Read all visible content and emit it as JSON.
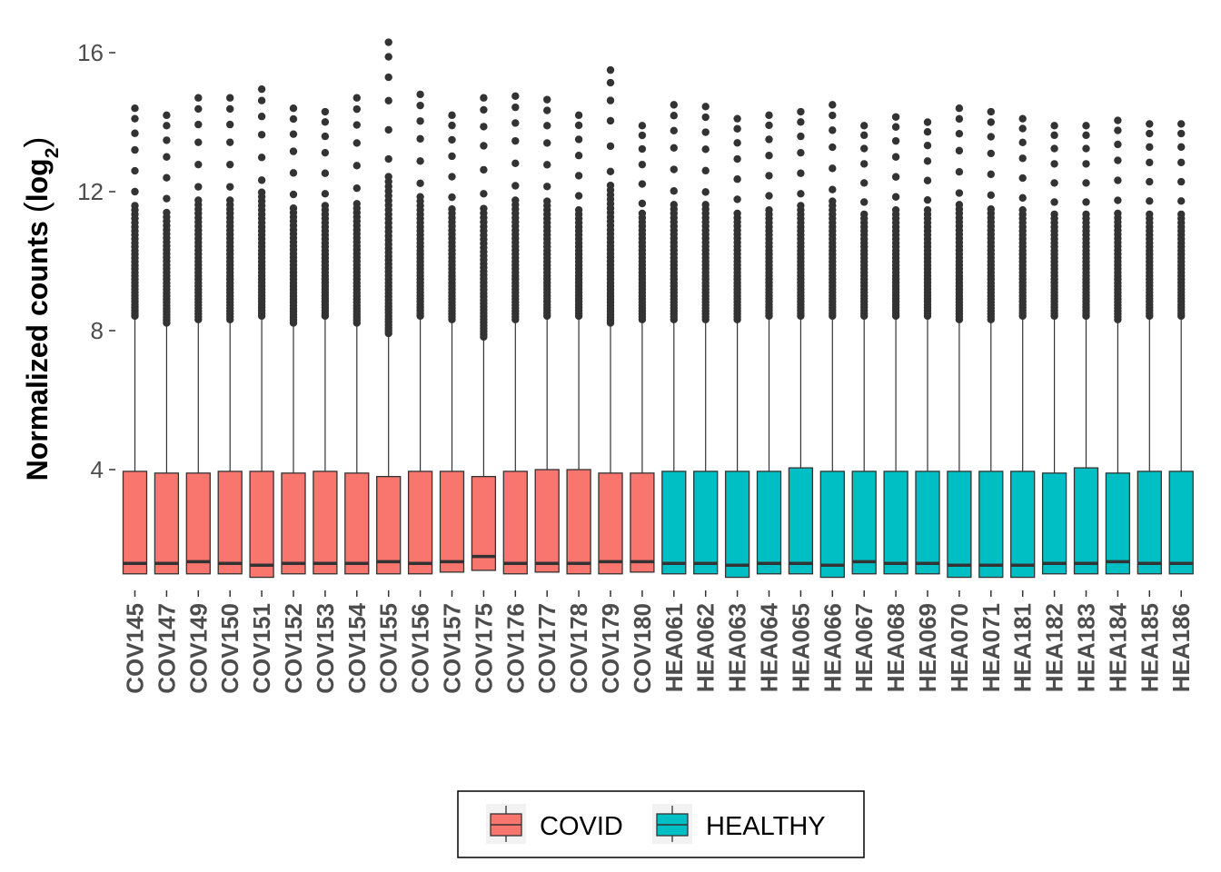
{
  "chart_data": {
    "type": "boxplot",
    "ylabel": "Normalized counts (log2)",
    "ylabel_parts": {
      "main": "Normalized counts ",
      "base": "log",
      "sub": "2"
    },
    "xlabel": "",
    "ylim": [
      0.3,
      16.5
    ],
    "yticks": [
      4,
      8,
      12,
      16
    ],
    "legend": {
      "placement": "bottom",
      "entries": [
        {
          "group": "COVID",
          "label": "COVID",
          "color": "#F8766D"
        },
        {
          "group": "HEALTHY",
          "label": "HEALTHY",
          "color": "#00BFC4"
        }
      ]
    },
    "outlier_color": "#333333",
    "box_stroke": "#333333",
    "samples": [
      {
        "name": "COV145",
        "group": "COVID",
        "q1": 1.0,
        "median": 1.3,
        "q3": 3.95,
        "whisker_low": 1.0,
        "whisker_high": 8.4,
        "outlier_max": 14.4
      },
      {
        "name": "COV147",
        "group": "COVID",
        "q1": 1.0,
        "median": 1.3,
        "q3": 3.9,
        "whisker_low": 1.0,
        "whisker_high": 8.2,
        "outlier_max": 14.2
      },
      {
        "name": "COV149",
        "group": "COVID",
        "q1": 1.0,
        "median": 1.35,
        "q3": 3.9,
        "whisker_low": 1.0,
        "whisker_high": 8.3,
        "outlier_max": 14.7
      },
      {
        "name": "COV150",
        "group": "COVID",
        "q1": 1.0,
        "median": 1.3,
        "q3": 3.95,
        "whisker_low": 1.0,
        "whisker_high": 8.3,
        "outlier_max": 14.7
      },
      {
        "name": "COV151",
        "group": "COVID",
        "q1": 0.9,
        "median": 1.25,
        "q3": 3.95,
        "whisker_low": 0.9,
        "whisker_high": 8.4,
        "outlier_max": 14.95
      },
      {
        "name": "COV152",
        "group": "COVID",
        "q1": 1.0,
        "median": 1.3,
        "q3": 3.9,
        "whisker_low": 1.0,
        "whisker_high": 8.2,
        "outlier_max": 14.4
      },
      {
        "name": "COV153",
        "group": "COVID",
        "q1": 1.0,
        "median": 1.3,
        "q3": 3.95,
        "whisker_low": 1.0,
        "whisker_high": 8.4,
        "outlier_max": 14.3
      },
      {
        "name": "COV154",
        "group": "COVID",
        "q1": 1.0,
        "median": 1.3,
        "q3": 3.9,
        "whisker_low": 1.0,
        "whisker_high": 8.2,
        "outlier_max": 14.7
      },
      {
        "name": "COV155",
        "group": "COVID",
        "q1": 1.0,
        "median": 1.35,
        "q3": 3.8,
        "whisker_low": 1.0,
        "whisker_high": 7.9,
        "outlier_max": 16.3
      },
      {
        "name": "COV156",
        "group": "COVID",
        "q1": 1.0,
        "median": 1.3,
        "q3": 3.95,
        "whisker_low": 1.0,
        "whisker_high": 8.4,
        "outlier_max": 14.8
      },
      {
        "name": "COV157",
        "group": "COVID",
        "q1": 1.05,
        "median": 1.35,
        "q3": 3.95,
        "whisker_low": 1.05,
        "whisker_high": 8.3,
        "outlier_max": 14.2
      },
      {
        "name": "COV175",
        "group": "COVID",
        "q1": 1.1,
        "median": 1.5,
        "q3": 3.8,
        "whisker_low": 1.1,
        "whisker_high": 7.8,
        "outlier_max": 14.7
      },
      {
        "name": "COV176",
        "group": "COVID",
        "q1": 1.0,
        "median": 1.3,
        "q3": 3.95,
        "whisker_low": 1.0,
        "whisker_high": 8.3,
        "outlier_max": 14.75
      },
      {
        "name": "COV177",
        "group": "COVID",
        "q1": 1.05,
        "median": 1.3,
        "q3": 4.0,
        "whisker_low": 1.05,
        "whisker_high": 8.4,
        "outlier_max": 14.65
      },
      {
        "name": "COV178",
        "group": "COVID",
        "q1": 1.0,
        "median": 1.3,
        "q3": 4.0,
        "whisker_low": 1.0,
        "whisker_high": 8.4,
        "outlier_max": 14.2
      },
      {
        "name": "COV179",
        "group": "COVID",
        "q1": 1.0,
        "median": 1.35,
        "q3": 3.9,
        "whisker_low": 1.0,
        "whisker_high": 8.2,
        "outlier_max": 15.5
      },
      {
        "name": "COV180",
        "group": "COVID",
        "q1": 1.05,
        "median": 1.35,
        "q3": 3.9,
        "whisker_low": 1.05,
        "whisker_high": 8.3,
        "outlier_max": 13.9
      },
      {
        "name": "HEA061",
        "group": "HEALTHY",
        "q1": 1.0,
        "median": 1.3,
        "q3": 3.95,
        "whisker_low": 1.0,
        "whisker_high": 8.3,
        "outlier_max": 14.5
      },
      {
        "name": "HEA062",
        "group": "HEALTHY",
        "q1": 1.0,
        "median": 1.3,
        "q3": 3.95,
        "whisker_low": 1.0,
        "whisker_high": 8.3,
        "outlier_max": 14.45
      },
      {
        "name": "HEA063",
        "group": "HEALTHY",
        "q1": 0.9,
        "median": 1.25,
        "q3": 3.95,
        "whisker_low": 0.9,
        "whisker_high": 8.3,
        "outlier_max": 14.1
      },
      {
        "name": "HEA064",
        "group": "HEALTHY",
        "q1": 1.0,
        "median": 1.3,
        "q3": 3.95,
        "whisker_low": 1.0,
        "whisker_high": 8.4,
        "outlier_max": 14.2
      },
      {
        "name": "HEA065",
        "group": "HEALTHY",
        "q1": 1.0,
        "median": 1.3,
        "q3": 4.05,
        "whisker_low": 1.0,
        "whisker_high": 8.4,
        "outlier_max": 14.3
      },
      {
        "name": "HEA066",
        "group": "HEALTHY",
        "q1": 0.9,
        "median": 1.25,
        "q3": 3.95,
        "whisker_low": 0.9,
        "whisker_high": 8.4,
        "outlier_max": 14.5
      },
      {
        "name": "HEA067",
        "group": "HEALTHY",
        "q1": 1.0,
        "median": 1.35,
        "q3": 3.95,
        "whisker_low": 1.0,
        "whisker_high": 8.4,
        "outlier_max": 13.9
      },
      {
        "name": "HEA068",
        "group": "HEALTHY",
        "q1": 1.0,
        "median": 1.3,
        "q3": 3.95,
        "whisker_low": 1.0,
        "whisker_high": 8.4,
        "outlier_max": 14.15
      },
      {
        "name": "HEA069",
        "group": "HEALTHY",
        "q1": 1.0,
        "median": 1.3,
        "q3": 3.95,
        "whisker_low": 1.0,
        "whisker_high": 8.4,
        "outlier_max": 14.0
      },
      {
        "name": "HEA070",
        "group": "HEALTHY",
        "q1": 0.9,
        "median": 1.25,
        "q3": 3.95,
        "whisker_low": 0.9,
        "whisker_high": 8.3,
        "outlier_max": 14.4
      },
      {
        "name": "HEA071",
        "group": "HEALTHY",
        "q1": 0.9,
        "median": 1.25,
        "q3": 3.95,
        "whisker_low": 0.9,
        "whisker_high": 8.3,
        "outlier_max": 14.3
      },
      {
        "name": "HEA181",
        "group": "HEALTHY",
        "q1": 0.9,
        "median": 1.25,
        "q3": 3.95,
        "whisker_low": 0.9,
        "whisker_high": 8.4,
        "outlier_max": 14.1
      },
      {
        "name": "HEA182",
        "group": "HEALTHY",
        "q1": 1.0,
        "median": 1.3,
        "q3": 3.9,
        "whisker_low": 1.0,
        "whisker_high": 8.4,
        "outlier_max": 13.9
      },
      {
        "name": "HEA183",
        "group": "HEALTHY",
        "q1": 1.0,
        "median": 1.3,
        "q3": 4.05,
        "whisker_low": 1.0,
        "whisker_high": 8.4,
        "outlier_max": 13.9
      },
      {
        "name": "HEA184",
        "group": "HEALTHY",
        "q1": 1.0,
        "median": 1.35,
        "q3": 3.9,
        "whisker_low": 1.0,
        "whisker_high": 8.3,
        "outlier_max": 14.05
      },
      {
        "name": "HEA185",
        "group": "HEALTHY",
        "q1": 1.0,
        "median": 1.3,
        "q3": 3.95,
        "whisker_low": 1.0,
        "whisker_high": 8.4,
        "outlier_max": 13.95
      },
      {
        "name": "HEA186",
        "group": "HEALTHY",
        "q1": 1.0,
        "median": 1.3,
        "q3": 3.95,
        "whisker_low": 1.0,
        "whisker_high": 8.4,
        "outlier_max": 13.95
      }
    ]
  }
}
